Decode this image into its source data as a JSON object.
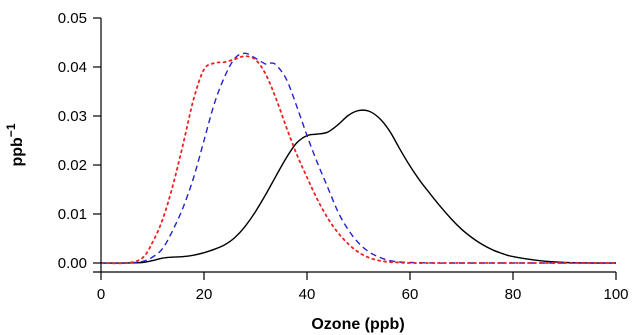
{
  "chart_data": {
    "type": "line",
    "xlabel": "Ozone (ppb)",
    "ylabel": "ppb",
    "ylabel_superscript": "−1",
    "xlim": [
      0,
      100
    ],
    "ylim": [
      0,
      0.05
    ],
    "x_ticks": [
      0,
      20,
      40,
      60,
      80,
      100
    ],
    "x_tick_labels": [
      "0",
      "20",
      "40",
      "60",
      "80",
      "100"
    ],
    "y_ticks": [
      0,
      0.01,
      0.02,
      0.03,
      0.04,
      0.05
    ],
    "y_tick_labels": [
      "0.00",
      "0.01",
      "0.02",
      "0.03",
      "0.04",
      "0.05"
    ],
    "grid": false,
    "series": [
      {
        "style": "solid",
        "color": "#000000",
        "x": [
          0,
          5,
          8,
          10,
          12,
          14,
          16,
          18,
          20,
          22,
          24,
          26,
          28,
          30,
          32,
          34,
          36,
          38,
          40,
          42,
          44,
          46,
          48,
          50,
          52,
          54,
          56,
          58,
          60,
          62,
          64,
          66,
          68,
          70,
          72,
          74,
          76,
          78,
          80,
          85,
          90,
          95,
          100
        ],
        "y": [
          0,
          0,
          0.0001,
          0.0005,
          0.001,
          0.0012,
          0.0013,
          0.0016,
          0.0021,
          0.0028,
          0.0037,
          0.0052,
          0.0075,
          0.0105,
          0.014,
          0.0178,
          0.0215,
          0.0245,
          0.026,
          0.0263,
          0.0267,
          0.0282,
          0.0301,
          0.0311,
          0.031,
          0.0296,
          0.027,
          0.0233,
          0.0198,
          0.0167,
          0.014,
          0.0114,
          0.009,
          0.0069,
          0.0052,
          0.0038,
          0.0027,
          0.0019,
          0.0013,
          0.0005,
          0.0001,
          0,
          0
        ]
      },
      {
        "style": "dashed",
        "color": "#2222cc",
        "x": [
          0,
          5,
          8,
          10,
          12,
          14,
          16,
          18,
          20,
          22,
          24,
          26,
          28,
          30,
          32,
          33,
          34,
          36,
          38,
          40,
          42,
          44,
          46,
          48,
          50,
          52,
          54,
          56,
          58,
          60,
          65,
          70,
          100
        ],
        "y": [
          0,
          0,
          0.0003,
          0.0012,
          0.003,
          0.0068,
          0.0115,
          0.0175,
          0.025,
          0.0325,
          0.038,
          0.0418,
          0.0428,
          0.0418,
          0.0406,
          0.0408,
          0.0404,
          0.0375,
          0.032,
          0.026,
          0.0205,
          0.0155,
          0.0105,
          0.0068,
          0.0041,
          0.0023,
          0.0012,
          0.0005,
          0.0002,
          0.0001,
          0,
          0,
          0
        ]
      },
      {
        "style": "dotted",
        "color": "#ee2222",
        "x": [
          0,
          5,
          8,
          10,
          12,
          14,
          16,
          18,
          20,
          22,
          24,
          26,
          28,
          30,
          32,
          34,
          36,
          38,
          40,
          42,
          44,
          46,
          48,
          50,
          52,
          54,
          56,
          58,
          60,
          70,
          100
        ],
        "y": [
          0,
          0,
          0.001,
          0.0042,
          0.009,
          0.016,
          0.0245,
          0.0335,
          0.0395,
          0.0408,
          0.041,
          0.0416,
          0.0422,
          0.0415,
          0.0385,
          0.0335,
          0.0277,
          0.0222,
          0.0175,
          0.013,
          0.0092,
          0.0062,
          0.0039,
          0.0022,
          0.0011,
          0.0005,
          0.0002,
          0.0001,
          0,
          0,
          0
        ]
      }
    ]
  }
}
